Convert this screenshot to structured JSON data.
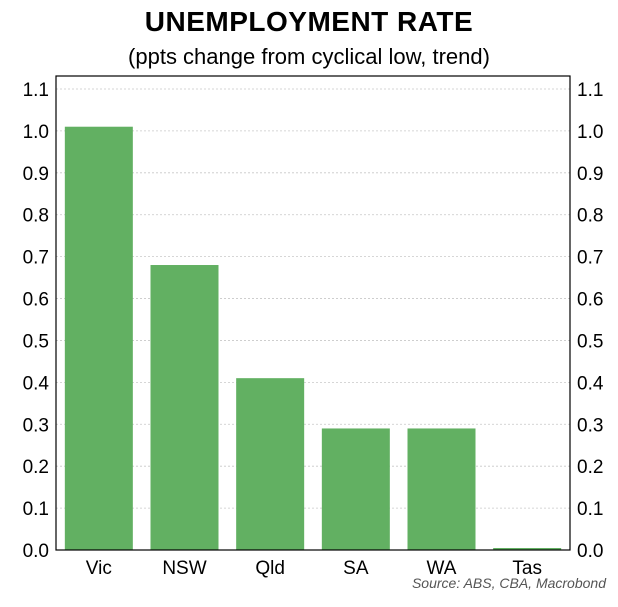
{
  "title": "UNEMPLOYMENT RATE",
  "subtitle": "(ppts change from cyclical low, trend)",
  "source": "Source: ABS, CBA, Macrobond",
  "chart_data": {
    "type": "bar",
    "categories": [
      "Vic",
      "NSW",
      "Qld",
      "SA",
      "WA",
      "Tas"
    ],
    "values": [
      1.01,
      0.68,
      0.41,
      0.29,
      0.29,
      0.0
    ],
    "ylim": [
      0,
      1.1
    ],
    "yticks": [
      "0.0",
      "0.1",
      "0.2",
      "0.3",
      "0.4",
      "0.5",
      "0.6",
      "0.7",
      "0.8",
      "0.9",
      "1.0",
      "1.1"
    ],
    "ytick_values": [
      0,
      0.1,
      0.2,
      0.3,
      0.4,
      0.5,
      0.6,
      0.7,
      0.8,
      0.9,
      1.0,
      1.1
    ],
    "grid": true,
    "bar_color": "#62b062",
    "grid_color": "#c8c8c8"
  }
}
